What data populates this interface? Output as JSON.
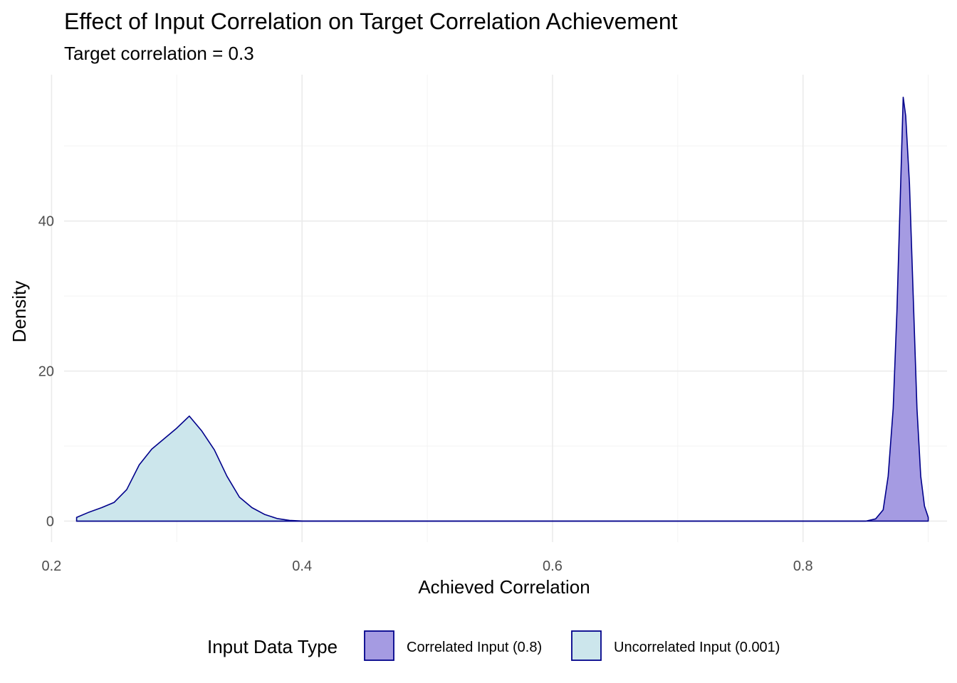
{
  "chart_data": {
    "type": "area",
    "title": "Effect of Input Correlation on Target Correlation Achievement",
    "subtitle": "Target correlation = 0.3",
    "xlabel": "Achieved Correlation",
    "ylabel": "Density",
    "xlim": [
      0.21,
      0.915
    ],
    "ylim": [
      -2.8,
      59.5
    ],
    "x_ticks": [
      0.2,
      0.4,
      0.6,
      0.8
    ],
    "x_tick_labels": [
      "0.2",
      "0.4",
      "0.6",
      "0.8"
    ],
    "y_ticks": [
      0,
      20,
      40
    ],
    "y_tick_labels": [
      "0",
      "20",
      "40"
    ],
    "grid": true,
    "legend": {
      "title": "Input Data Type",
      "position": "bottom"
    },
    "series": [
      {
        "name": "Correlated Input (0.8)",
        "fill": "#a59be2",
        "stroke": "#00008b",
        "points": [
          [
            0.22,
            0
          ],
          [
            0.5,
            0
          ],
          [
            0.85,
            0
          ],
          [
            0.858,
            0.3
          ],
          [
            0.864,
            1.5
          ],
          [
            0.868,
            6
          ],
          [
            0.872,
            15
          ],
          [
            0.875,
            28
          ],
          [
            0.878,
            45
          ],
          [
            0.88,
            56.5
          ],
          [
            0.882,
            54
          ],
          [
            0.885,
            45
          ],
          [
            0.888,
            30
          ],
          [
            0.891,
            15
          ],
          [
            0.894,
            6
          ],
          [
            0.897,
            2
          ],
          [
            0.9,
            0.5
          ]
        ]
      },
      {
        "name": "Uncorrelated Input (0.001)",
        "fill": "#cce6ec",
        "stroke": "#00008b",
        "points": [
          [
            0.22,
            0.5
          ],
          [
            0.23,
            1.2
          ],
          [
            0.24,
            1.8
          ],
          [
            0.25,
            2.5
          ],
          [
            0.26,
            4.2
          ],
          [
            0.27,
            7.5
          ],
          [
            0.28,
            9.6
          ],
          [
            0.29,
            11.0
          ],
          [
            0.3,
            12.4
          ],
          [
            0.31,
            14.0
          ],
          [
            0.32,
            12.0
          ],
          [
            0.33,
            9.5
          ],
          [
            0.34,
            6.0
          ],
          [
            0.35,
            3.2
          ],
          [
            0.36,
            1.8
          ],
          [
            0.37,
            0.9
          ],
          [
            0.38,
            0.35
          ],
          [
            0.39,
            0.1
          ],
          [
            0.4,
            0.02
          ],
          [
            0.5,
            0
          ],
          [
            0.85,
            0
          ]
        ]
      }
    ]
  }
}
